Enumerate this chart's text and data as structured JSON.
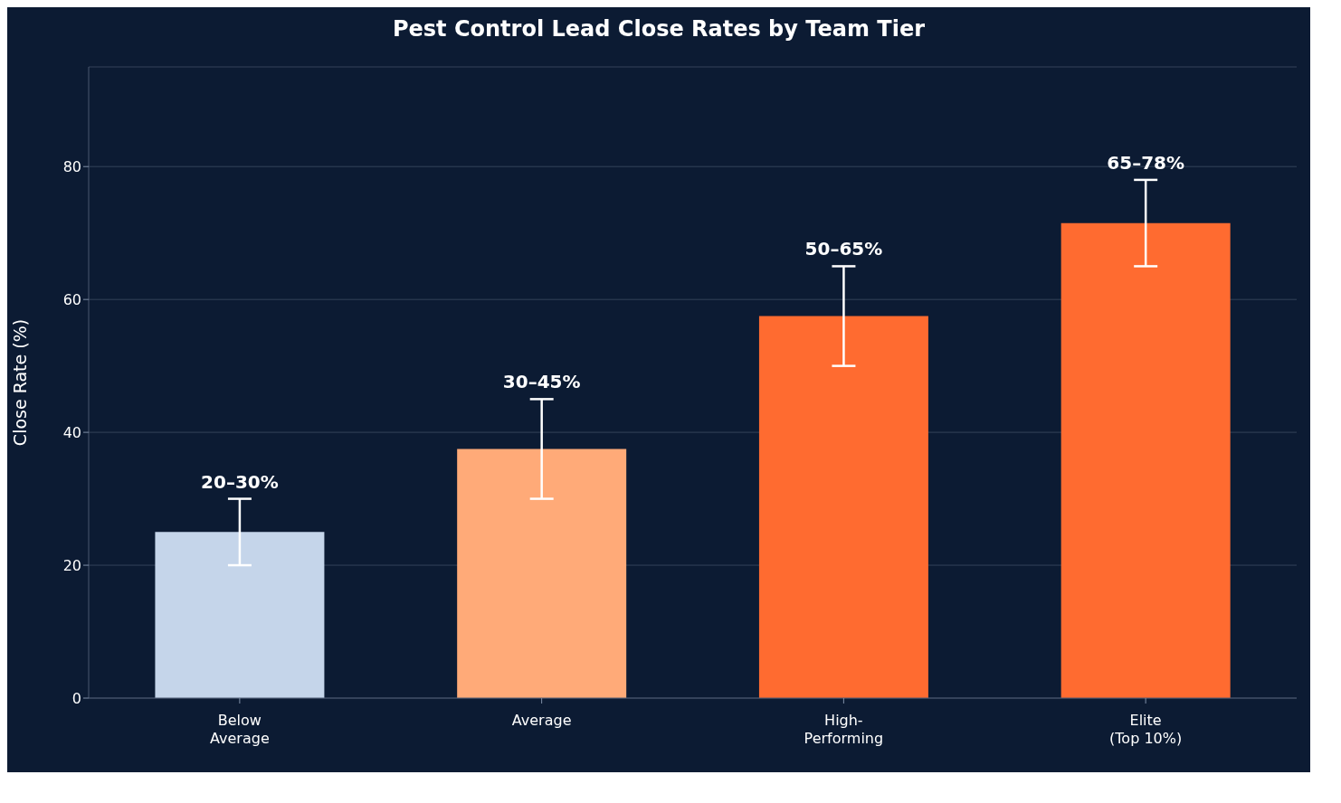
{
  "chart_data": {
    "type": "bar",
    "title": "Pest Control Lead Close Rates by Team Tier",
    "ylabel": "Close Rate (%)",
    "categories": [
      "Below Average",
      "Average",
      "High-Performing",
      "Elite (Top 10%)"
    ],
    "values": [
      25,
      37.5,
      57.5,
      71.5
    ],
    "colors": [
      "#c5d5ea",
      "#ffaa78",
      "#ff6b30",
      "#ff6b30"
    ],
    "errors": [
      [
        20,
        30
      ],
      [
        30,
        45
      ],
      [
        50,
        65
      ],
      [
        65,
        78
      ]
    ],
    "annotations": [
      {
        "text": "20–30%",
        "x": "Below Average",
        "y": 30
      },
      {
        "text": "30–45%",
        "x": "Average",
        "y": 45
      },
      {
        "text": "50–65%",
        "x": "High-Performing",
        "y": 65
      },
      {
        "text": "65–78%",
        "x": "Elite (Top 10%)",
        "y": 78
      }
    ],
    "ylim": [
      0,
      95
    ],
    "yticks": [
      0,
      20,
      40,
      60,
      80
    ],
    "grid": "y"
  }
}
